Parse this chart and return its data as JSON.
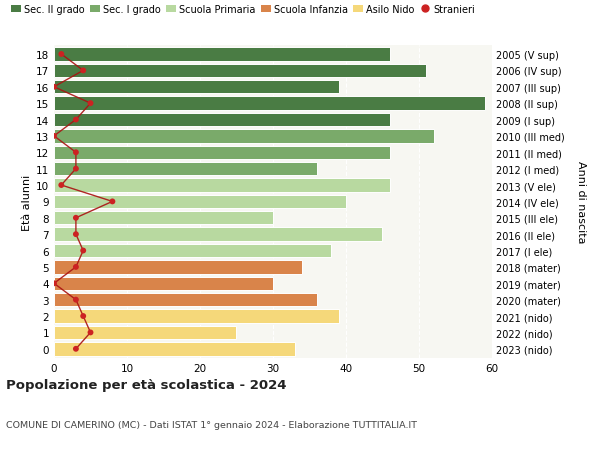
{
  "ages": [
    18,
    17,
    16,
    15,
    14,
    13,
    12,
    11,
    10,
    9,
    8,
    7,
    6,
    5,
    4,
    3,
    2,
    1,
    0
  ],
  "labels_right": [
    "2005 (V sup)",
    "2006 (IV sup)",
    "2007 (III sup)",
    "2008 (II sup)",
    "2009 (I sup)",
    "2010 (III med)",
    "2011 (II med)",
    "2012 (I med)",
    "2013 (V ele)",
    "2014 (IV ele)",
    "2015 (III ele)",
    "2016 (II ele)",
    "2017 (I ele)",
    "2018 (mater)",
    "2019 (mater)",
    "2020 (mater)",
    "2021 (nido)",
    "2022 (nido)",
    "2023 (nido)"
  ],
  "bar_values": [
    46,
    51,
    39,
    59,
    46,
    52,
    46,
    36,
    46,
    40,
    30,
    45,
    38,
    34,
    30,
    36,
    39,
    25,
    33
  ],
  "bar_colors": [
    "#4a7c44",
    "#4a7c44",
    "#4a7c44",
    "#4a7c44",
    "#4a7c44",
    "#7aaa6a",
    "#7aaa6a",
    "#7aaa6a",
    "#b8d9a0",
    "#b8d9a0",
    "#b8d9a0",
    "#b8d9a0",
    "#b8d9a0",
    "#d9844a",
    "#d9844a",
    "#d9844a",
    "#f5d87a",
    "#f5d87a",
    "#f5d87a"
  ],
  "stranieri_values": [
    1,
    4,
    0,
    5,
    3,
    0,
    3,
    3,
    1,
    8,
    3,
    3,
    4,
    3,
    0,
    3,
    4,
    5,
    3
  ],
  "legend_labels": [
    "Sec. II grado",
    "Sec. I grado",
    "Scuola Primaria",
    "Scuola Infanzia",
    "Asilo Nido",
    "Stranieri"
  ],
  "legend_colors": [
    "#4a7c44",
    "#7aaa6a",
    "#b8d9a0",
    "#d9844a",
    "#f5d87a",
    "#cc2222"
  ],
  "title": "Popolazione per età scolastica - 2024",
  "subtitle": "COMUNE DI CAMERINO (MC) - Dati ISTAT 1° gennaio 2024 - Elaborazione TUTTITALIA.IT",
  "ylabel_left": "Età alunni",
  "ylabel_right": "Anni di nascita",
  "xlim": [
    0,
    60
  ],
  "xticks": [
    0,
    10,
    20,
    30,
    40,
    50,
    60
  ],
  "plot_bg": "#f7f7f2",
  "fig_bg": "#ffffff"
}
